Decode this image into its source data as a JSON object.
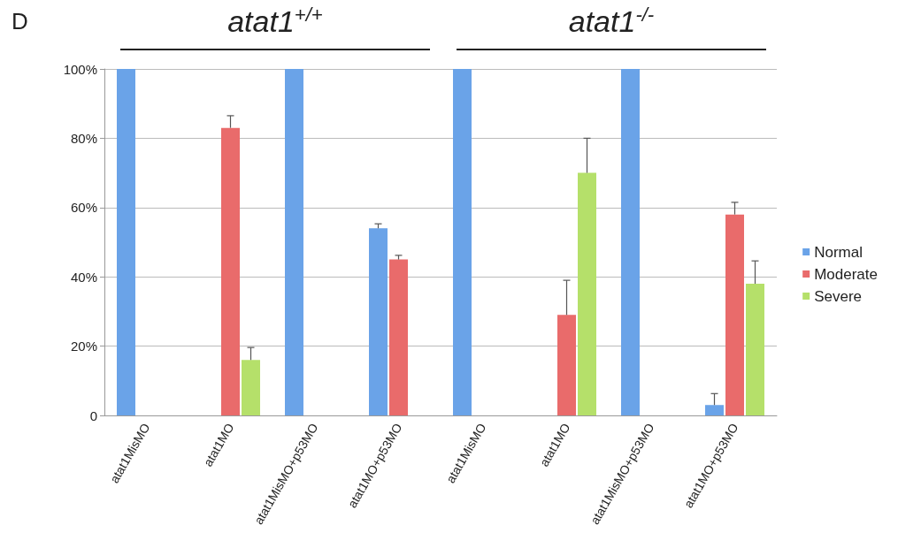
{
  "chart_data": {
    "type": "bar",
    "title": "D",
    "annotations": [
      "atat1$^{+/+}$",
      "atat1$^{-/-}$"
    ],
    "categories": [
      "atat1MisMO",
      "atat1MO",
      "atat1MisMO+p53MO",
      "atat1MO+p53MO",
      "atat1MisMO",
      "atat1MO",
      "atat1MisMO+p53MO",
      "atat1MO+p53MO"
    ],
    "series": [
      {
        "name": "Normal",
        "color": "#6aa3e8",
        "values": [
          100,
          0,
          100,
          54,
          100,
          0,
          100,
          3
        ],
        "errors": [
          null,
          null,
          null,
          [
            54,
            55.3
          ],
          null,
          null,
          null,
          [
            3,
            6.3
          ]
        ]
      },
      {
        "name": "Moderate",
        "color": "#e96b6b",
        "values": [
          0,
          83,
          0,
          45,
          0,
          29,
          0,
          58
        ],
        "errors": [
          null,
          [
            83,
            86.5
          ],
          null,
          [
            45,
            46.2
          ],
          null,
          [
            29,
            39
          ],
          null,
          [
            58,
            61.5
          ]
        ]
      },
      {
        "name": "Severe",
        "color": "#b5e06a",
        "values": [
          0,
          16,
          0,
          0,
          0,
          70,
          0,
          38
        ],
        "errors": [
          null,
          [
            16,
            19.6
          ],
          null,
          null,
          null,
          [
            70,
            80
          ],
          null,
          [
            38,
            44.6
          ]
        ]
      }
    ],
    "ylim": [
      0,
      100
    ],
    "yticks": [
      {
        "value": 0,
        "label": "0"
      },
      {
        "value": 20,
        "label": "20%"
      },
      {
        "value": 40,
        "label": "40%"
      },
      {
        "value": 60,
        "label": "60%"
      },
      {
        "value": 80,
        "label": "80%"
      },
      {
        "value": 100,
        "label": "100%"
      }
    ],
    "grid": "y",
    "legend": "right"
  }
}
